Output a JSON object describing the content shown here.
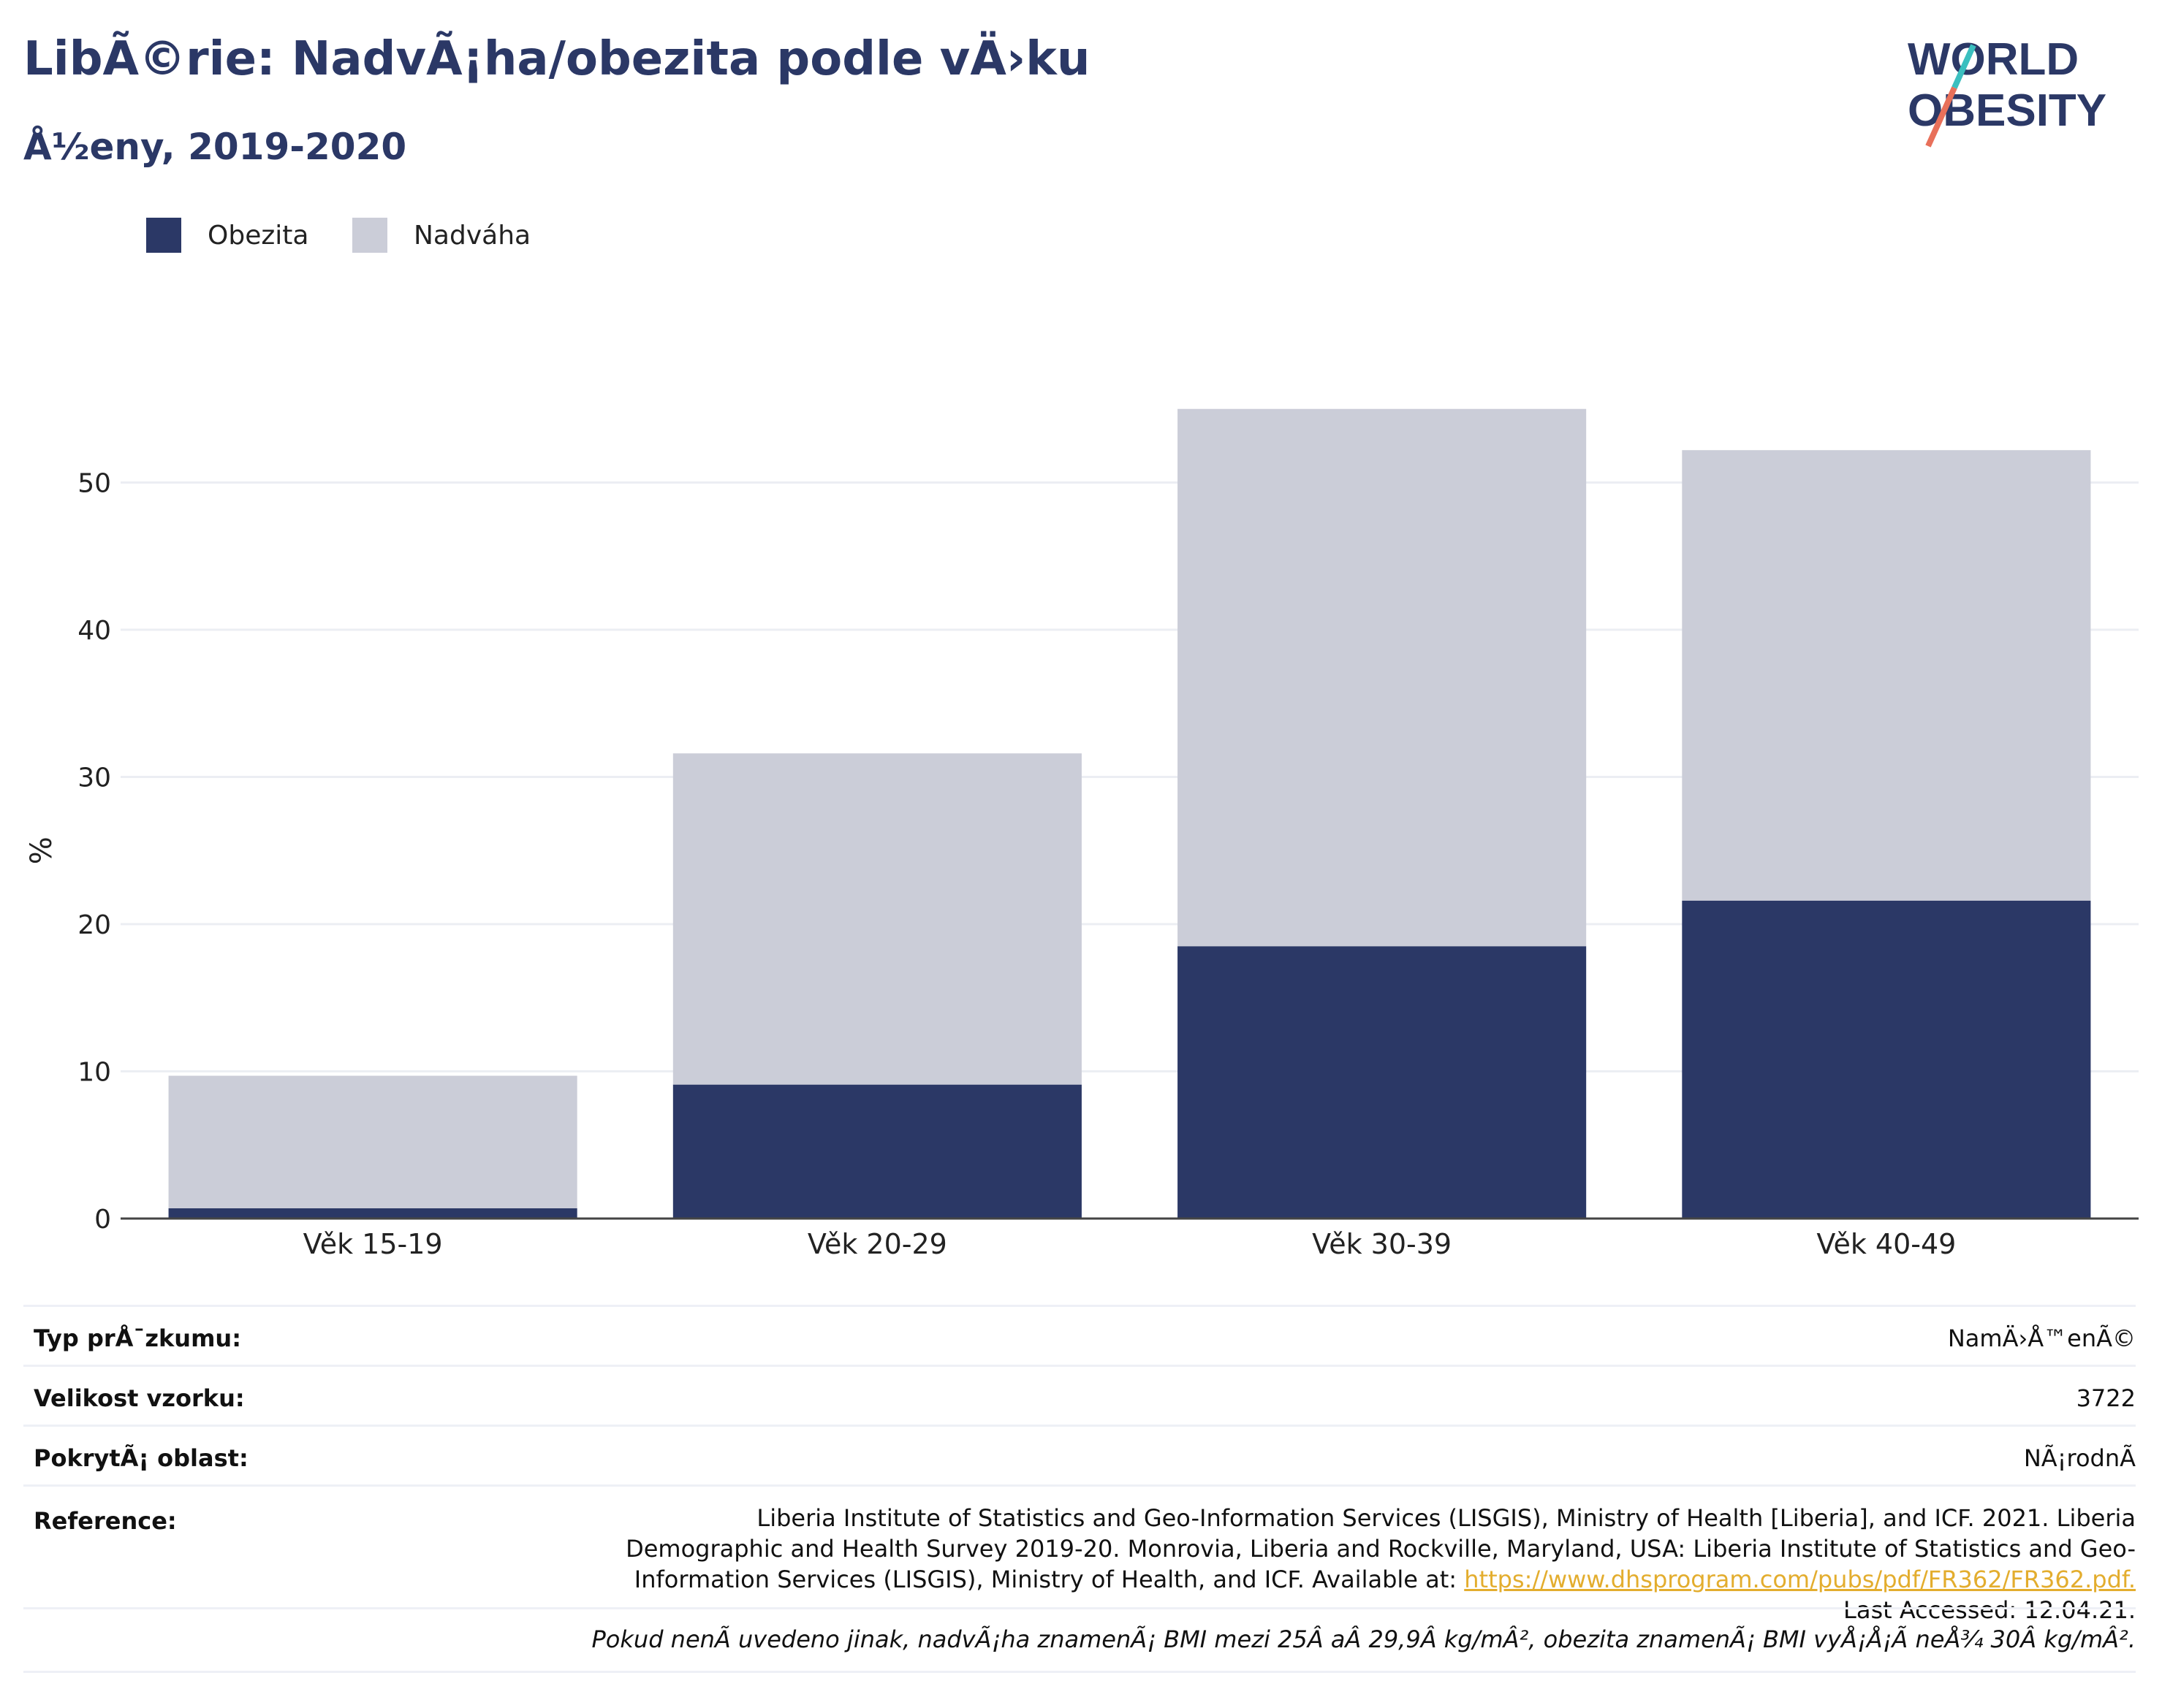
{
  "header": {
    "title": "LibÃ©rie: NadvÃ¡ha/obezita podle vÄ›ku",
    "subtitle": "Å½eny, 2019-2020"
  },
  "logo": {
    "line1": "WORLD",
    "line2": "OBESITY"
  },
  "legend": [
    {
      "label": "Obezita",
      "color": "#2b3866"
    },
    {
      "label": "Nadváha",
      "color": "#cbcdd8"
    }
  ],
  "chart_data": {
    "type": "bar",
    "stacked": true,
    "categories": [
      "Věk 15-19",
      "Věk 20-29",
      "Věk 30-39",
      "Věk 40-49"
    ],
    "series": [
      {
        "name": "Obezita",
        "values": [
          0.7,
          9.1,
          18.5,
          21.6
        ],
        "color": "#2b3866"
      },
      {
        "name": "Nadváha",
        "values": [
          9.0,
          22.5,
          36.5,
          30.6
        ],
        "color": "#cbcdd8"
      }
    ],
    "ylabel": "%",
    "ylim": [
      0,
      55
    ],
    "yticks": [
      0,
      10,
      20,
      30,
      40,
      50
    ],
    "grid": true,
    "legend_position": "top-left"
  },
  "info": {
    "rows": [
      {
        "label": "Typ prÅ¯zkumu:",
        "value": "NamÄ›Å™enÃ©"
      },
      {
        "label": "Velikost vzorku:",
        "value": "3722"
      },
      {
        "label": "PokrytÃ¡ oblast:",
        "value": "NÃ¡rodnÃ"
      }
    ],
    "reference": {
      "label": "Reference:",
      "text_before": "Liberia Institute of Statistics and Geo-Information Services (LISGIS), Ministry of Health [Liberia], and ICF. 2021. Liberia Demographic and Health Survey 2019-20. Monrovia, Liberia and Rockville, Maryland, USA: Liberia Institute of Statistics and Geo-Information Services (LISGIS), Ministry of Health, and ICF. Available at: ",
      "link": "https://www.dhsprogram.com/pubs/pdf/FR362/FR362.pdf.",
      "text_after": " Last Accessed: 12.04.21."
    },
    "footnote": "Pokud nenÃ uvedeno jinak, nadvÃ¡ha znamenÃ¡ BMI mezi 25Â aÂ 29,9Â kg/mÂ², obezita znamenÃ¡ BMI vyÅ¡Å¡Ã neÅ¾ 30Â kg/mÂ²."
  }
}
